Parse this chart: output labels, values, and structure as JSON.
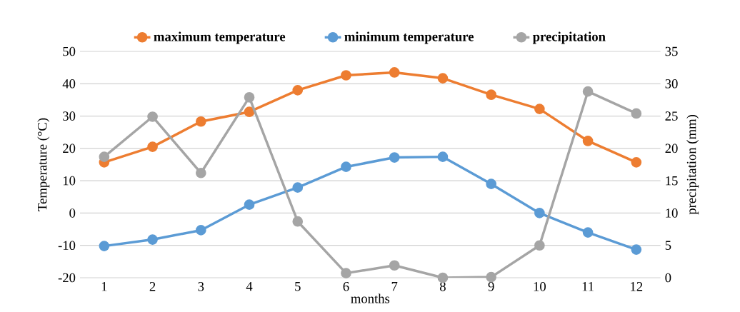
{
  "chart_data": {
    "type": "line",
    "xlabel": "months",
    "ylabel": "Temperature (°C)",
    "y2label": "precipitation (mm)",
    "categories": [
      "1",
      "2",
      "3",
      "4",
      "5",
      "6",
      "7",
      "8",
      "9",
      "10",
      "11",
      "12"
    ],
    "series": [
      {
        "name": "maximum temperature",
        "color": "#ed7d31",
        "values": [
          15.7,
          20.5,
          28.3,
          31.3,
          38,
          42.6,
          43.5,
          41.7,
          36.6,
          32.2,
          22.3,
          15.7
        ]
      },
      {
        "name": "minimum temperature",
        "color": "#5b9bd5",
        "values": [
          -10.2,
          -8.2,
          -5.3,
          2.6,
          7.9,
          14.3,
          17.2,
          17.4,
          9,
          0,
          -6,
          -11.3
        ]
      },
      {
        "name": "precipitation",
        "color": "#a5a5a5",
        "axis": "y2",
        "values": [
          18.7,
          24.9,
          16.2,
          27.9,
          8.7,
          0.7,
          1.9,
          0,
          0.1,
          5,
          28.8,
          25.4
        ]
      }
    ],
    "ylim": [
      -20,
      50
    ],
    "yticks": [
      -20,
      -10,
      0,
      10,
      20,
      30,
      40,
      50
    ],
    "y2lim": [
      0,
      35
    ],
    "y2ticks": [
      0,
      5,
      10,
      15,
      20,
      25,
      30,
      35
    ],
    "grid": "y",
    "legend": "top",
    "marker": "circle"
  }
}
